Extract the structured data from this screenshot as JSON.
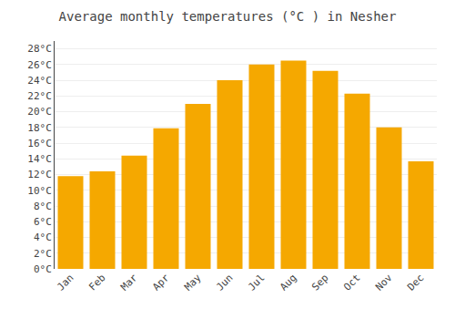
{
  "chart_data": {
    "type": "bar",
    "title": "Average monthly temperatures (°C ) in Nesher",
    "categories": [
      "Jan",
      "Feb",
      "Mar",
      "Apr",
      "May",
      "Jun",
      "Jul",
      "Aug",
      "Sep",
      "Oct",
      "Nov",
      "Dec"
    ],
    "values": [
      11.8,
      12.4,
      14.4,
      17.9,
      21.0,
      24.0,
      26.0,
      26.5,
      25.2,
      22.3,
      18.0,
      13.7
    ],
    "color": "#F5A800",
    "ylim": [
      0,
      29
    ],
    "yticks": [
      {
        "value": 0,
        "label": "0°C"
      },
      {
        "value": 2,
        "label": "2°C"
      },
      {
        "value": 4,
        "label": "4°C"
      },
      {
        "value": 6,
        "label": "6°C"
      },
      {
        "value": 8,
        "label": "8°C"
      },
      {
        "value": 10,
        "label": "10°C"
      },
      {
        "value": 12,
        "label": "12°C"
      },
      {
        "value": 14,
        "label": "14°C"
      },
      {
        "value": 16,
        "label": "16°C"
      },
      {
        "value": 18,
        "label": "18°C"
      },
      {
        "value": 20,
        "label": "20°C"
      },
      {
        "value": 22,
        "label": "22°C"
      },
      {
        "value": 24,
        "label": "24°C"
      },
      {
        "value": 26,
        "label": "26°C"
      },
      {
        "value": 28,
        "label": "28°C"
      }
    ],
    "grid": true
  }
}
